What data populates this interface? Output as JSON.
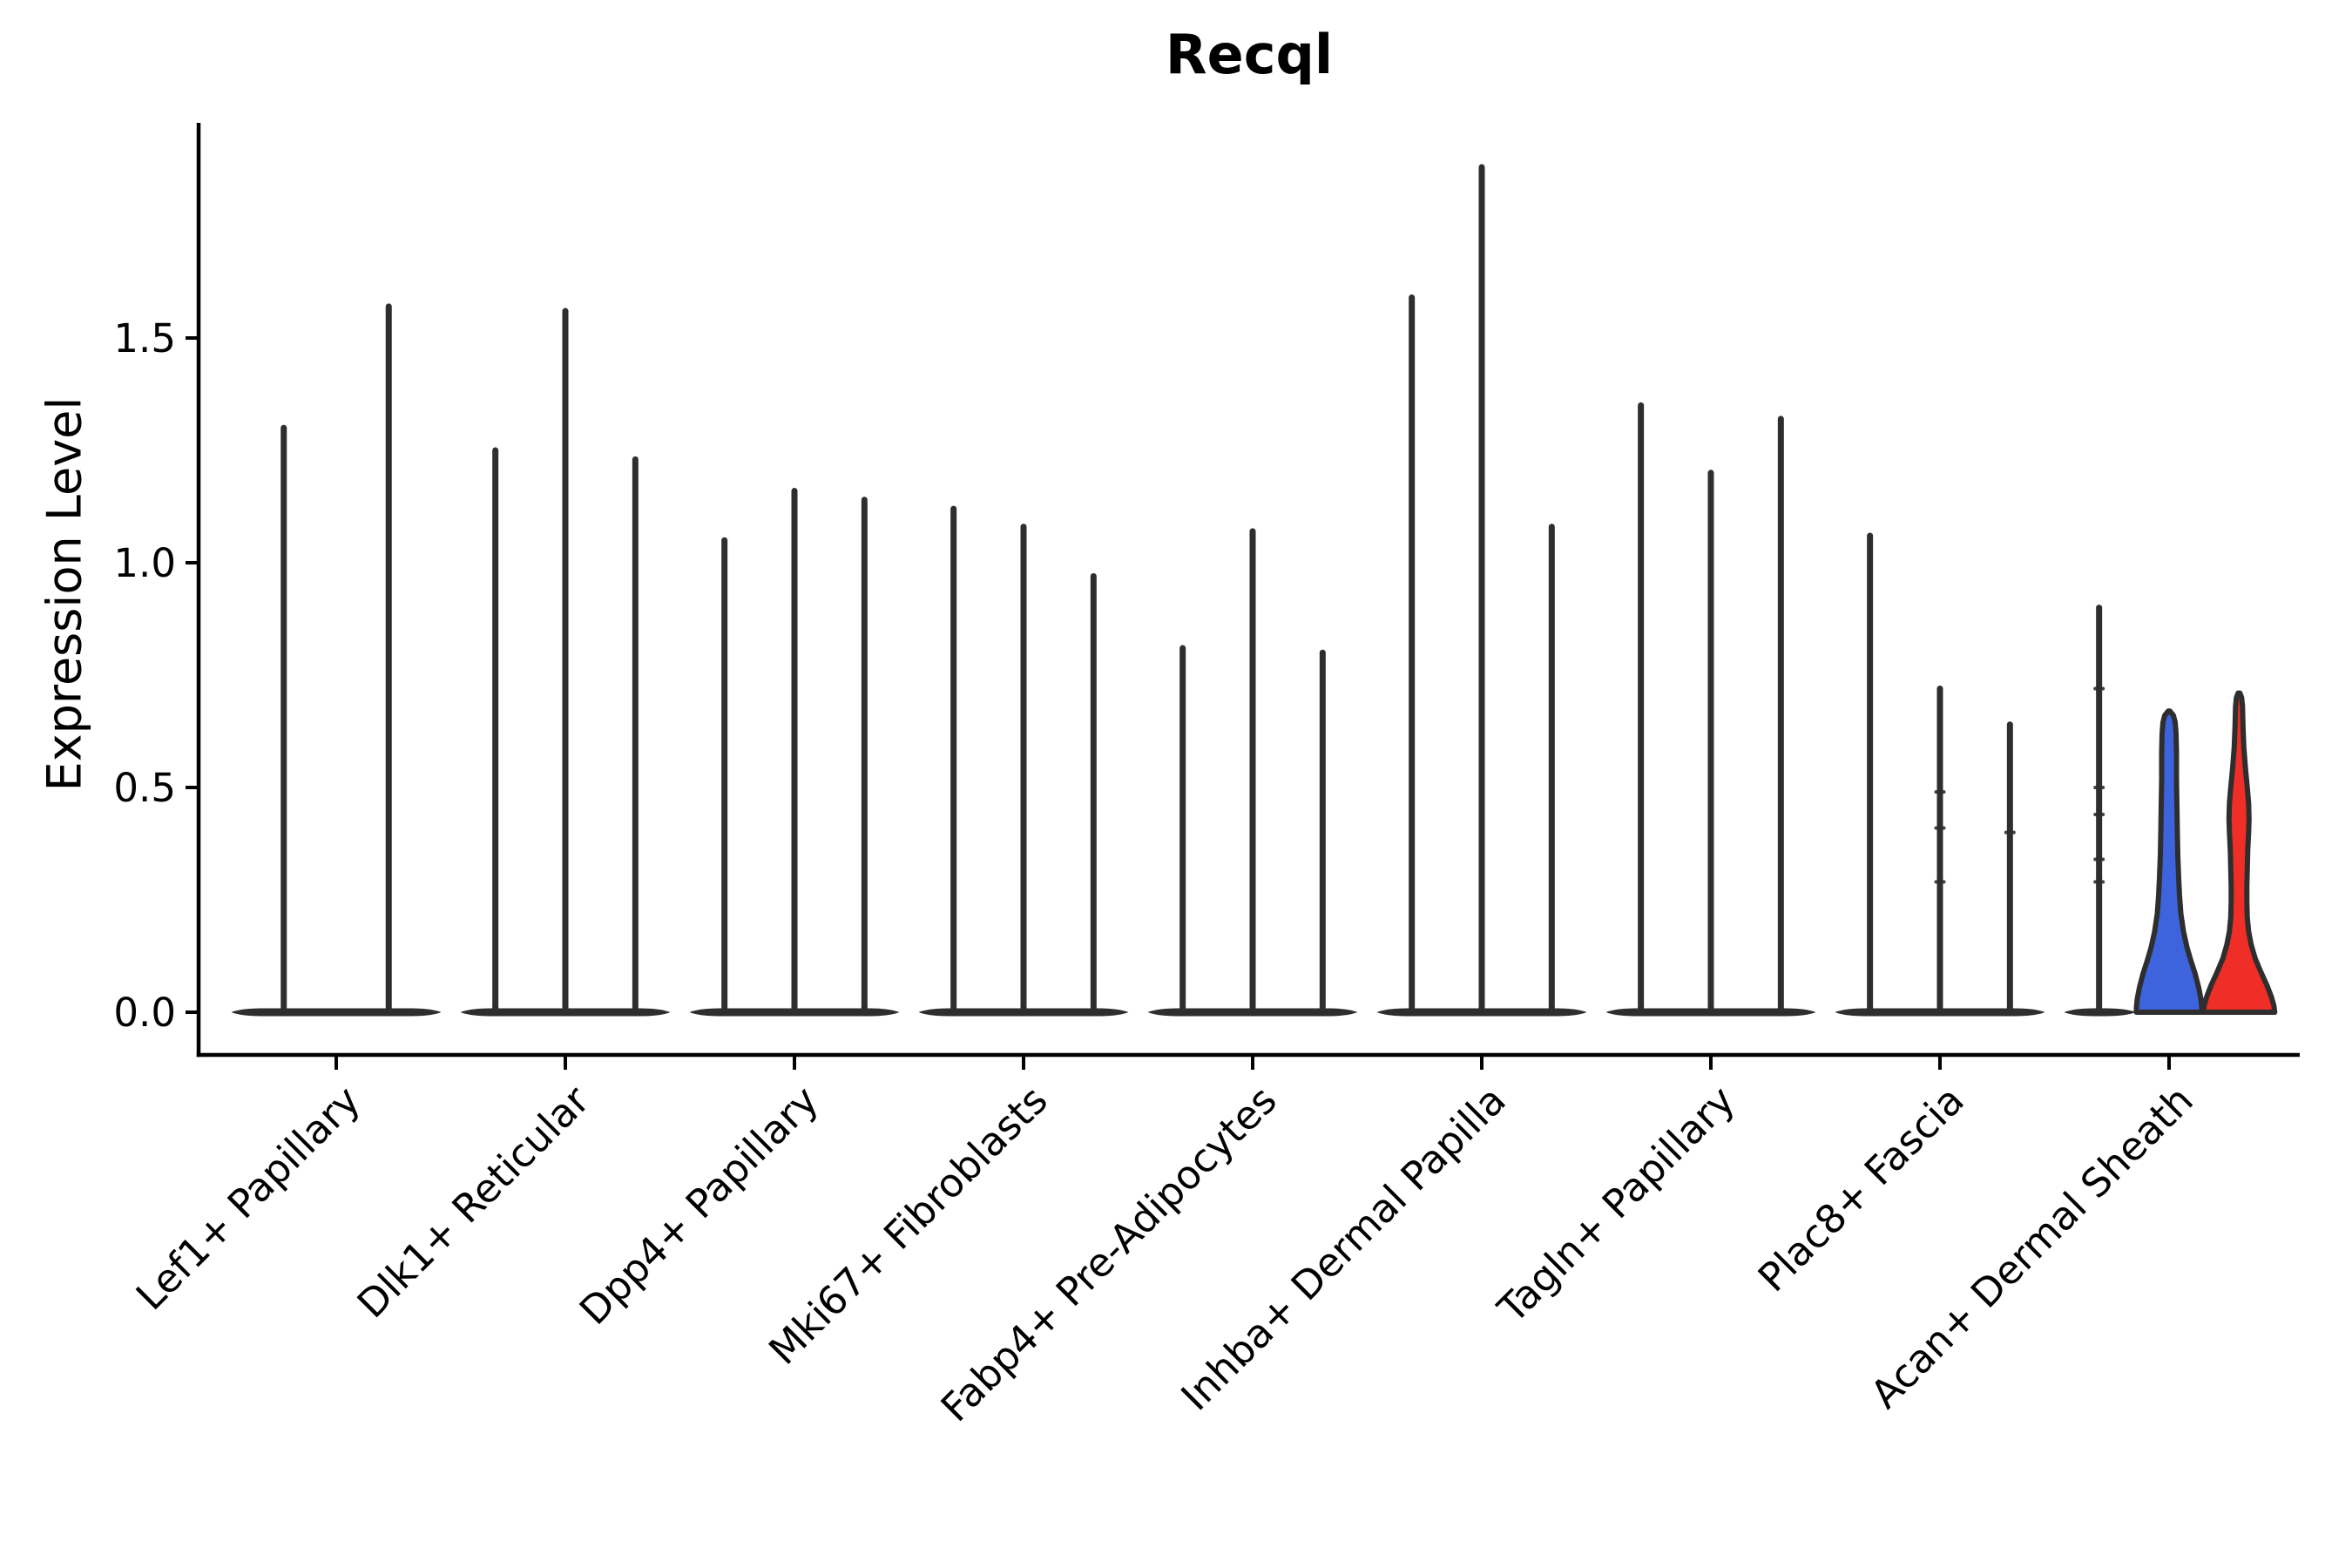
{
  "chart_data": {
    "type": "violin",
    "title": "Recql",
    "ylabel": "Expression Level",
    "ylim": [
      0,
      1.98
    ],
    "yticks": [
      0.0,
      0.5,
      1.0,
      1.5
    ],
    "ytick_labels": [
      "0.0",
      "0.5",
      "1.0",
      "1.5"
    ],
    "legend": "none",
    "grid": false,
    "colors": {
      "spike": "#2e2e2e",
      "axis": "#000000",
      "split_blue": "#3e64dd",
      "split_red": "#ee2e27"
    },
    "categories": [
      "Lef1+ Papillary",
      "Dlk1+ Reticular",
      "Dpp4+ Papillary",
      "Mki67+ Fibroblasts",
      "Fabp4+ Pre-Adipocytes",
      "Inhba+ Dermal Papilla",
      "Tagln+ Papillary",
      "Plac8+ Fascia",
      "Acan+ Dermal Sheath"
    ],
    "groups": [
      {
        "label": "Lef1+ Papillary",
        "violins": [
          {
            "kind": "spike",
            "max": 1.3
          },
          {
            "kind": "spike",
            "max": 1.57
          }
        ]
      },
      {
        "label": "Dlk1+ Reticular",
        "violins": [
          {
            "kind": "spike",
            "max": 1.25
          },
          {
            "kind": "spike",
            "max": 1.56
          },
          {
            "kind": "spike",
            "max": 1.23
          }
        ]
      },
      {
        "label": "Dpp4+ Papillary",
        "violins": [
          {
            "kind": "spike",
            "max": 1.05
          },
          {
            "kind": "spike",
            "max": 1.16
          },
          {
            "kind": "spike",
            "max": 1.14
          }
        ]
      },
      {
        "label": "Mki67+ Fibroblasts",
        "violins": [
          {
            "kind": "spike",
            "max": 1.12
          },
          {
            "kind": "spike",
            "max": 1.08
          },
          {
            "kind": "spike",
            "max": 0.97
          }
        ]
      },
      {
        "label": "Fabp4+ Pre-Adipocytes",
        "violins": [
          {
            "kind": "spike",
            "max": 0.81
          },
          {
            "kind": "spike",
            "max": 1.07
          },
          {
            "kind": "spike",
            "max": 0.8
          }
        ]
      },
      {
        "label": "Inhba+ Dermal Papilla",
        "violins": [
          {
            "kind": "spike",
            "max": 1.59
          },
          {
            "kind": "spike",
            "max": 1.88
          },
          {
            "kind": "spike",
            "max": 1.08
          }
        ]
      },
      {
        "label": "Tagln+ Papillary",
        "violins": [
          {
            "kind": "spike",
            "max": 1.35
          },
          {
            "kind": "spike",
            "max": 1.2
          },
          {
            "kind": "spike",
            "max": 1.32
          }
        ]
      },
      {
        "label": "Plac8+ Fascia",
        "violins": [
          {
            "kind": "spike",
            "max": 1.06
          },
          {
            "kind": "spike",
            "max": 0.72,
            "marks": [
              0.49,
              0.41,
              0.29
            ]
          },
          {
            "kind": "spike",
            "max": 0.64,
            "marks": [
              0.4
            ]
          }
        ]
      },
      {
        "label": "Acan+ Dermal Sheath",
        "violins": [
          {
            "kind": "spike",
            "max": 0.9,
            "marks": [
              0.72,
              0.5,
              0.44,
              0.34,
              0.29
            ]
          },
          {
            "kind": "density",
            "color": "#3e64dd",
            "max": 0.67,
            "profile": [
              [
                0.67,
                1
              ],
              [
                0.66,
                5
              ],
              [
                0.645,
                7
              ],
              [
                0.62,
                8
              ],
              [
                0.58,
                8.5
              ],
              [
                0.52,
                8.5
              ],
              [
                0.46,
                9
              ],
              [
                0.4,
                9.5
              ],
              [
                0.35,
                10
              ],
              [
                0.3,
                11
              ],
              [
                0.26,
                12
              ],
              [
                0.22,
                13.5
              ],
              [
                0.18,
                16.5
              ],
              [
                0.145,
                20.5
              ],
              [
                0.115,
                25
              ],
              [
                0.085,
                30
              ],
              [
                0.055,
                34
              ],
              [
                0.03,
                36.5
              ],
              [
                0.01,
                37.5
              ],
              [
                0.0,
                37.5
              ]
            ]
          },
          {
            "kind": "density",
            "color": "#ee2e27",
            "max": 0.71,
            "profile": [
              [
                0.71,
                1
              ],
              [
                0.7,
                3
              ],
              [
                0.68,
                4
              ],
              [
                0.64,
                4.5
              ],
              [
                0.59,
                5.5
              ],
              [
                0.54,
                7.5
              ],
              [
                0.5,
                9.5
              ],
              [
                0.465,
                11
              ],
              [
                0.43,
                11.5
              ],
              [
                0.4,
                11
              ],
              [
                0.36,
                10
              ],
              [
                0.32,
                9.5
              ],
              [
                0.28,
                9
              ],
              [
                0.245,
                9
              ],
              [
                0.21,
                9.5
              ],
              [
                0.18,
                11
              ],
              [
                0.15,
                14
              ],
              [
                0.12,
                18.5
              ],
              [
                0.09,
                25
              ],
              [
                0.06,
                32
              ],
              [
                0.035,
                37
              ],
              [
                0.015,
                40
              ],
              [
                0.0,
                41
              ]
            ]
          }
        ]
      }
    ]
  }
}
